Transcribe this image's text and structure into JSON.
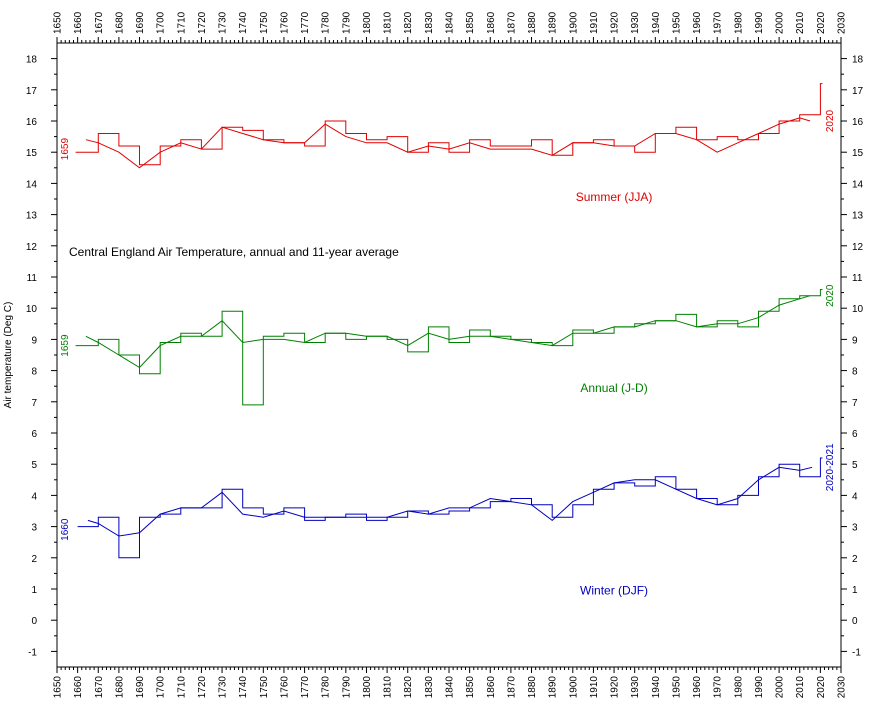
{
  "chart_data": {
    "type": "line",
    "title": "Central England Air Temperature, annual and 11-year average",
    "ylabel": "Air temperature (Deg C)",
    "xlabel": "",
    "xlim": [
      1650,
      2030
    ],
    "ylim": [
      -1.5,
      18.5
    ],
    "x_ticks": [
      1650,
      1660,
      1670,
      1680,
      1690,
      1700,
      1710,
      1720,
      1730,
      1740,
      1750,
      1760,
      1770,
      1780,
      1790,
      1800,
      1810,
      1820,
      1830,
      1840,
      1850,
      1860,
      1870,
      1880,
      1890,
      1900,
      1910,
      1920,
      1930,
      1940,
      1950,
      1960,
      1970,
      1980,
      1990,
      2000,
      2010,
      2020,
      2030
    ],
    "y_ticks": [
      -1,
      0,
      1,
      2,
      3,
      4,
      5,
      6,
      7,
      8,
      9,
      10,
      11,
      12,
      13,
      14,
      15,
      16,
      17,
      18
    ],
    "grid": false,
    "series": [
      {
        "name": "Summer (JJA)",
        "color": "#e00000",
        "start_label": "1659",
        "end_label": "2020",
        "annual_x": [
          1659,
          1670,
          1680,
          1690,
          1700,
          1710,
          1720,
          1730,
          1740,
          1750,
          1760,
          1770,
          1780,
          1790,
          1800,
          1810,
          1820,
          1830,
          1840,
          1850,
          1860,
          1870,
          1880,
          1890,
          1900,
          1910,
          1920,
          1930,
          1940,
          1950,
          1960,
          1970,
          1980,
          1990,
          2000,
          2010,
          2020
        ],
        "annual_y": [
          15.0,
          15.6,
          15.2,
          14.6,
          15.2,
          15.4,
          15.1,
          15.8,
          15.7,
          15.4,
          15.3,
          15.2,
          16.0,
          15.6,
          15.4,
          15.5,
          15.0,
          15.3,
          15.0,
          15.4,
          15.2,
          15.2,
          15.4,
          14.9,
          15.3,
          15.4,
          15.2,
          15.0,
          15.6,
          15.8,
          15.4,
          15.5,
          15.4,
          15.6,
          16.0,
          16.2,
          17.2
        ],
        "average_x": [
          1664,
          1670,
          1680,
          1690,
          1700,
          1710,
          1720,
          1730,
          1740,
          1750,
          1760,
          1770,
          1780,
          1790,
          1800,
          1810,
          1820,
          1830,
          1840,
          1850,
          1860,
          1870,
          1880,
          1890,
          1900,
          1910,
          1920,
          1930,
          1940,
          1950,
          1960,
          1970,
          1980,
          1990,
          2000,
          2010,
          2015
        ],
        "average_y": [
          15.4,
          15.3,
          15.0,
          14.5,
          15.0,
          15.3,
          15.1,
          15.8,
          15.6,
          15.4,
          15.3,
          15.3,
          15.9,
          15.5,
          15.3,
          15.3,
          15.0,
          15.2,
          15.1,
          15.3,
          15.1,
          15.1,
          15.1,
          14.9,
          15.3,
          15.3,
          15.2,
          15.2,
          15.6,
          15.6,
          15.4,
          15.0,
          15.3,
          15.6,
          15.9,
          16.1,
          16.0
        ]
      },
      {
        "name": "Annual (J-D)",
        "color": "#008000",
        "start_label": "1659",
        "end_label": "2020",
        "annual_x": [
          1659,
          1670,
          1680,
          1690,
          1700,
          1710,
          1720,
          1730,
          1740,
          1750,
          1760,
          1770,
          1780,
          1790,
          1800,
          1810,
          1820,
          1830,
          1840,
          1850,
          1860,
          1870,
          1880,
          1890,
          1900,
          1910,
          1920,
          1930,
          1940,
          1950,
          1960,
          1970,
          1980,
          1990,
          2000,
          2010,
          2020
        ],
        "annual_y": [
          8.8,
          9.0,
          8.5,
          7.9,
          8.9,
          9.2,
          9.1,
          9.9,
          6.9,
          9.1,
          9.2,
          8.9,
          9.2,
          9.0,
          9.1,
          9.0,
          8.6,
          9.4,
          8.9,
          9.3,
          9.1,
          9.0,
          8.9,
          8.8,
          9.3,
          9.2,
          9.4,
          9.5,
          9.6,
          9.8,
          9.4,
          9.6,
          9.4,
          9.9,
          10.3,
          10.4,
          10.6
        ],
        "average_x": [
          1664,
          1670,
          1680,
          1690,
          1700,
          1710,
          1720,
          1730,
          1740,
          1750,
          1760,
          1770,
          1780,
          1790,
          1800,
          1810,
          1820,
          1830,
          1840,
          1850,
          1860,
          1870,
          1880,
          1890,
          1900,
          1910,
          1920,
          1930,
          1940,
          1950,
          1960,
          1970,
          1980,
          1990,
          2000,
          2010,
          2015
        ],
        "average_y": [
          9.1,
          8.9,
          8.5,
          8.1,
          8.8,
          9.1,
          9.1,
          9.6,
          8.9,
          9.0,
          9.0,
          8.9,
          9.2,
          9.2,
          9.1,
          9.1,
          8.8,
          9.2,
          9.0,
          9.1,
          9.1,
          9.0,
          8.9,
          8.8,
          9.2,
          9.2,
          9.4,
          9.4,
          9.6,
          9.6,
          9.4,
          9.5,
          9.5,
          9.7,
          10.1,
          10.3,
          10.4
        ]
      },
      {
        "name": "Winter (DJF)",
        "color": "#0000c0",
        "start_label": "1660",
        "end_label": "2020-2021",
        "annual_x": [
          1660,
          1670,
          1680,
          1690,
          1700,
          1710,
          1720,
          1730,
          1740,
          1750,
          1760,
          1770,
          1780,
          1790,
          1800,
          1810,
          1820,
          1830,
          1840,
          1850,
          1860,
          1870,
          1880,
          1890,
          1900,
          1910,
          1920,
          1930,
          1940,
          1950,
          1960,
          1970,
          1980,
          1990,
          2000,
          2010,
          2020
        ],
        "annual_y": [
          3.0,
          3.3,
          2.0,
          3.3,
          3.4,
          3.6,
          3.6,
          4.2,
          3.6,
          3.4,
          3.6,
          3.2,
          3.3,
          3.4,
          3.2,
          3.3,
          3.5,
          3.4,
          3.5,
          3.6,
          3.8,
          3.9,
          3.7,
          3.3,
          3.7,
          4.2,
          4.4,
          4.3,
          4.6,
          4.2,
          3.9,
          3.7,
          4.0,
          4.6,
          5.0,
          4.6,
          5.2
        ],
        "average_x": [
          1665,
          1670,
          1680,
          1690,
          1700,
          1710,
          1720,
          1730,
          1740,
          1750,
          1760,
          1770,
          1780,
          1790,
          1800,
          1810,
          1820,
          1830,
          1840,
          1850,
          1860,
          1870,
          1880,
          1890,
          1900,
          1910,
          1920,
          1930,
          1940,
          1950,
          1960,
          1970,
          1980,
          1990,
          2000,
          2010,
          2016
        ],
        "average_y": [
          3.2,
          3.1,
          2.7,
          2.8,
          3.4,
          3.6,
          3.6,
          4.1,
          3.4,
          3.3,
          3.5,
          3.3,
          3.3,
          3.3,
          3.3,
          3.3,
          3.5,
          3.4,
          3.6,
          3.6,
          3.9,
          3.8,
          3.7,
          3.2,
          3.8,
          4.1,
          4.4,
          4.5,
          4.5,
          4.2,
          3.9,
          3.7,
          3.9,
          4.5,
          4.9,
          4.8,
          4.9
        ]
      }
    ]
  }
}
